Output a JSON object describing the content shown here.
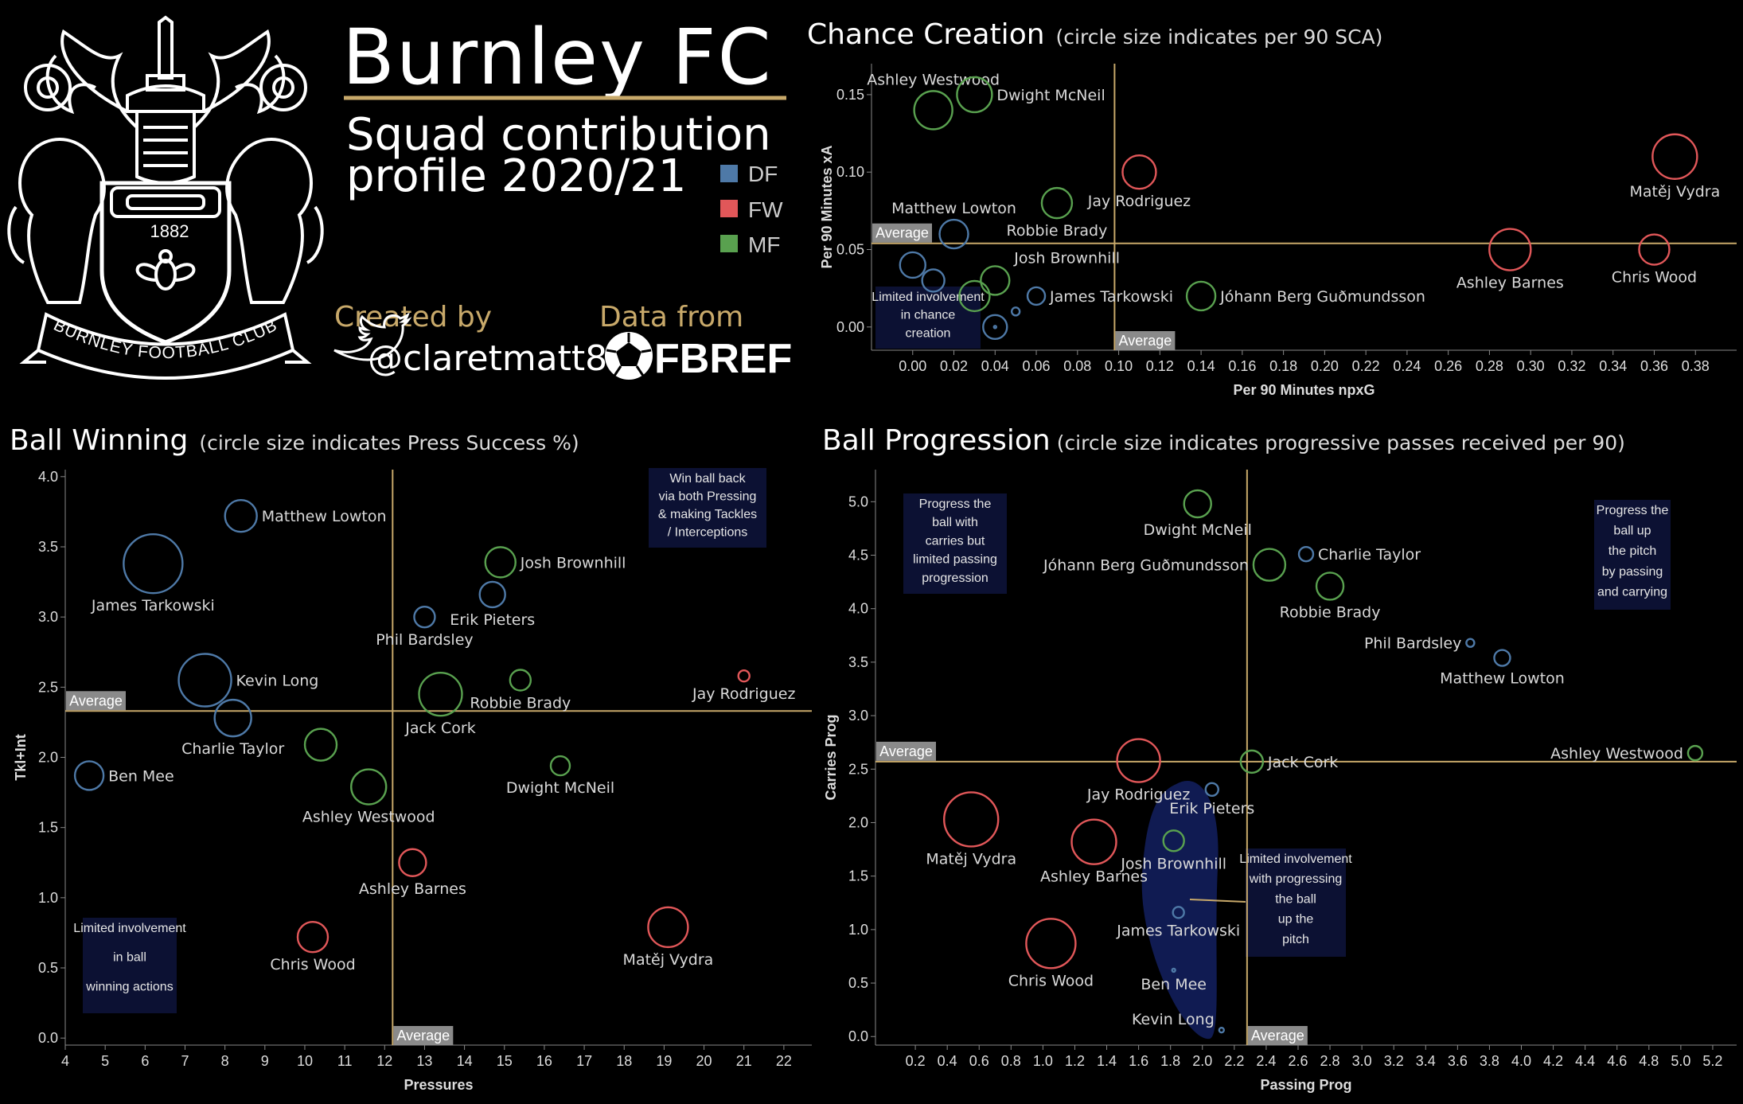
{
  "header": {
    "title": "Burnley FC",
    "subtitle_line1": "Squad contribution",
    "subtitle_line2": "profile 2020/21",
    "created_by_label": "Created by",
    "twitter_handle": "@claretmatt87",
    "data_from_label": "Data from",
    "data_source_logo_text": "FBREF",
    "crest_year": "1882",
    "crest_motto": "BURNLEY FOOTBALL CLUB",
    "gold_color": "#c8a96a"
  },
  "legend": [
    {
      "label": "DF",
      "color": "#4e79a7"
    },
    {
      "label": "FW",
      "color": "#e15759"
    },
    {
      "label": "MF",
      "color": "#59a14f"
    }
  ],
  "chart_data": [
    {
      "type": "scatter",
      "title": "Chance Creation",
      "subtitle": "(circle size indicates per 90 SCA)",
      "xlabel": "Per 90 Minutes npxG",
      "ylabel": "Per 90 Minutes xA",
      "xlim": [
        -0.02,
        0.4
      ],
      "ylim": [
        -0.015,
        0.17
      ],
      "xticks": [
        "0.00",
        "0.02",
        "0.04",
        "0.06",
        "0.08",
        "0.10",
        "0.12",
        "0.14",
        "0.16",
        "0.18",
        "0.20",
        "0.22",
        "0.24",
        "0.26",
        "0.28",
        "0.30",
        "0.32",
        "0.34",
        "0.36",
        "0.38"
      ],
      "yticks": [
        "0.00",
        "0.05",
        "0.10",
        "0.15"
      ],
      "avg_x": 0.098,
      "avg_y": 0.054,
      "avg_label": "Average",
      "grid": false,
      "points": [
        {
          "name": "Ashley Westwood",
          "pos": "MF",
          "x": 0.01,
          "y": 0.14,
          "r": 24,
          "label": "Ashley Westwood"
        },
        {
          "name": "Dwight McNeil",
          "pos": "MF",
          "x": 0.03,
          "y": 0.15,
          "r": 22,
          "label": "Dwight McNeil"
        },
        {
          "name": "Matěj Vydra",
          "pos": "FW",
          "x": 0.37,
          "y": 0.11,
          "r": 28,
          "label": "Matěj Vydra"
        },
        {
          "name": "Jay Rodriguez",
          "pos": "FW",
          "x": 0.11,
          "y": 0.1,
          "r": 21,
          "label": "Jay Rodriguez"
        },
        {
          "name": "Robbie Brady",
          "pos": "MF",
          "x": 0.07,
          "y": 0.08,
          "r": 19,
          "label": "Robbie Brady"
        },
        {
          "name": "Matthew Lowton",
          "pos": "DF",
          "x": 0.02,
          "y": 0.06,
          "r": 18,
          "label": "Matthew Lowton"
        },
        {
          "name": "Ashley Barnes",
          "pos": "FW",
          "x": 0.29,
          "y": 0.05,
          "r": 26,
          "label": "Ashley Barnes"
        },
        {
          "name": "Chris Wood",
          "pos": "FW",
          "x": 0.36,
          "y": 0.05,
          "r": 19,
          "label": "Chris Wood"
        },
        {
          "name": "Josh Brownhill",
          "pos": "MF",
          "x": 0.04,
          "y": 0.03,
          "r": 18,
          "label": "Josh Brownhill"
        },
        {
          "name": "James Tarkowski",
          "pos": "DF",
          "x": 0.06,
          "y": 0.02,
          "r": 11,
          "label": "James Tarkowski"
        },
        {
          "name": "Jóhann Berg Guðmundsson",
          "pos": "MF",
          "x": 0.14,
          "y": 0.02,
          "r": 18,
          "label": "Jóhann Berg Guðmundsson"
        },
        {
          "name": "DF 1",
          "pos": "DF",
          "x": 0.0,
          "y": 0.04,
          "r": 16,
          "label": ""
        },
        {
          "name": "DF 2",
          "pos": "DF",
          "x": 0.01,
          "y": 0.03,
          "r": 14,
          "label": ""
        },
        {
          "name": "MF 1",
          "pos": "MF",
          "x": 0.03,
          "y": 0.02,
          "r": 19,
          "label": ""
        },
        {
          "name": "DF 3",
          "pos": "DF",
          "x": 0.04,
          "y": 0.0,
          "r": 15,
          "label": ""
        },
        {
          "name": "DF 4",
          "pos": "DF",
          "x": 0.05,
          "y": 0.01,
          "r": 5,
          "label": ""
        },
        {
          "name": "DF 5",
          "pos": "DF",
          "x": 0.04,
          "y": 0.0,
          "r": 1.5,
          "label": ""
        }
      ],
      "annotations": [
        "Limited involvement in chance creation"
      ]
    },
    {
      "type": "scatter",
      "title": "Ball Winning",
      "subtitle": "(circle size indicates Press Success %)",
      "xlabel": "Pressures",
      "ylabel": "Tkl+Int",
      "xlim": [
        4,
        22.7
      ],
      "ylim": [
        -0.05,
        4.05
      ],
      "xticks": [
        "4",
        "5",
        "6",
        "7",
        "8",
        "9",
        "10",
        "11",
        "12",
        "13",
        "14",
        "15",
        "16",
        "17",
        "18",
        "19",
        "20",
        "21",
        "22"
      ],
      "yticks": [
        "0.0",
        "0.5",
        "1.0",
        "1.5",
        "2.0",
        "2.5",
        "3.0",
        "3.5",
        "4.0"
      ],
      "avg_x": 12.2,
      "avg_y": 2.33,
      "avg_label": "Average",
      "grid": false,
      "points": [
        {
          "name": "Matthew Lowton",
          "pos": "DF",
          "x": 8.4,
          "y": 3.72,
          "r": 20,
          "label": "Matthew Lowton"
        },
        {
          "name": "James Tarkowski",
          "pos": "DF",
          "x": 6.2,
          "y": 3.38,
          "r": 37,
          "label": "James Tarkowski"
        },
        {
          "name": "Josh Brownhill",
          "pos": "MF",
          "x": 14.9,
          "y": 3.39,
          "r": 19,
          "label": "Josh Brownhill"
        },
        {
          "name": "Erik Pieters",
          "pos": "DF",
          "x": 14.7,
          "y": 3.16,
          "r": 16,
          "label": "Erik Pieters"
        },
        {
          "name": "Phil Bardsley",
          "pos": "DF",
          "x": 13.0,
          "y": 3.0,
          "r": 13,
          "label": "Phil Bardsley"
        },
        {
          "name": "Kevin Long",
          "pos": "DF",
          "x": 7.5,
          "y": 2.55,
          "r": 33,
          "label": "Kevin Long"
        },
        {
          "name": "Robbie Brady",
          "pos": "MF",
          "x": 15.4,
          "y": 2.55,
          "r": 13,
          "label": "Robbie Brady"
        },
        {
          "name": "Jay Rodriguez",
          "pos": "FW",
          "x": 21.0,
          "y": 2.58,
          "r": 7,
          "label": "Jay Rodriguez"
        },
        {
          "name": "Jack Cork",
          "pos": "MF",
          "x": 13.4,
          "y": 2.45,
          "r": 27,
          "label": "Jack Cork"
        },
        {
          "name": "Charlie Taylor",
          "pos": "DF",
          "x": 8.2,
          "y": 2.28,
          "r": 23,
          "label": "Charlie Taylor"
        },
        {
          "name": "MF 2",
          "pos": "MF",
          "x": 10.4,
          "y": 2.09,
          "r": 20,
          "label": ""
        },
        {
          "name": "Ben Mee",
          "pos": "DF",
          "x": 4.6,
          "y": 1.87,
          "r": 18,
          "label": "Ben Mee"
        },
        {
          "name": "Dwight McNeil",
          "pos": "MF",
          "x": 16.4,
          "y": 1.94,
          "r": 12,
          "label": "Dwight McNeil"
        },
        {
          "name": "Ashley Westwood",
          "pos": "MF",
          "x": 11.6,
          "y": 1.79,
          "r": 22,
          "label": "Ashley Westwood"
        },
        {
          "name": "Ashley Barnes",
          "pos": "FW",
          "x": 12.7,
          "y": 1.25,
          "r": 17,
          "label": "Ashley Barnes"
        },
        {
          "name": "Chris Wood",
          "pos": "FW",
          "x": 10.2,
          "y": 0.72,
          "r": 19,
          "label": "Chris Wood"
        },
        {
          "name": "Matěj Vydra",
          "pos": "FW",
          "x": 19.1,
          "y": 0.79,
          "r": 25,
          "label": "Matěj Vydra"
        }
      ],
      "annotations": [
        "Win ball back via both Pressing & making Tackles / Interceptions",
        "Limited involvement in ball winning actions"
      ]
    },
    {
      "type": "scatter",
      "title": "Ball Progression",
      "subtitle": "(circle size indicates progressive passes received per 90)",
      "xlabel": "Passing Prog",
      "ylabel": "Carries Prog",
      "xlim": [
        -0.05,
        5.35
      ],
      "ylim": [
        -0.08,
        5.3
      ],
      "xticks": [
        "0.2",
        "0.4",
        "0.6",
        "0.8",
        "1.0",
        "1.2",
        "1.4",
        "1.6",
        "1.8",
        "2.0",
        "2.2",
        "2.4",
        "2.6",
        "2.8",
        "3.0",
        "3.2",
        "3.4",
        "3.6",
        "3.8",
        "4.0",
        "4.2",
        "4.4",
        "4.6",
        "4.8",
        "5.0",
        "5.2"
      ],
      "yticks": [
        "0.0",
        "0.5",
        "1.0",
        "1.5",
        "2.0",
        "2.5",
        "3.0",
        "3.5",
        "4.0",
        "4.5",
        "5.0"
      ],
      "avg_x": 2.28,
      "avg_y": 2.57,
      "avg_label": "Average",
      "grid": false,
      "points": [
        {
          "name": "Dwight McNeil",
          "pos": "MF",
          "x": 1.97,
          "y": 4.98,
          "r": 17,
          "label": "Dwight McNeil"
        },
        {
          "name": "Charlie Taylor",
          "pos": "DF",
          "x": 2.65,
          "y": 4.51,
          "r": 9,
          "label": "Charlie Taylor"
        },
        {
          "name": "Jóhann Berg Guðmundsson",
          "pos": "MF",
          "x": 2.42,
          "y": 4.41,
          "r": 20,
          "label": "Jóhann Berg Guðmundsson"
        },
        {
          "name": "Robbie Brady",
          "pos": "MF",
          "x": 2.8,
          "y": 4.21,
          "r": 17,
          "label": "Robbie Brady"
        },
        {
          "name": "Phil Bardsley",
          "pos": "DF",
          "x": 3.68,
          "y": 3.68,
          "r": 5,
          "label": "Phil Bardsley"
        },
        {
          "name": "Matthew Lowton",
          "pos": "DF",
          "x": 3.88,
          "y": 3.54,
          "r": 10,
          "label": "Matthew Lowton"
        },
        {
          "name": "Ashley Westwood",
          "pos": "MF",
          "x": 5.09,
          "y": 2.65,
          "r": 9,
          "label": "Ashley Westwood"
        },
        {
          "name": "Jay Rodriguez",
          "pos": "FW",
          "x": 1.6,
          "y": 2.58,
          "r": 27,
          "label": "Jay Rodriguez"
        },
        {
          "name": "Jack Cork",
          "pos": "MF",
          "x": 2.31,
          "y": 2.57,
          "r": 14,
          "label": "Jack Cork"
        },
        {
          "name": "Erik Pieters",
          "pos": "DF",
          "x": 2.06,
          "y": 2.31,
          "r": 8,
          "label": "Erik Pieters"
        },
        {
          "name": "Matěj Vydra",
          "pos": "FW",
          "x": 0.55,
          "y": 2.03,
          "r": 34,
          "label": "Matěj Vydra"
        },
        {
          "name": "Ashley Barnes",
          "pos": "FW",
          "x": 1.32,
          "y": 1.82,
          "r": 28,
          "label": "Ashley Barnes"
        },
        {
          "name": "Josh Brownhill",
          "pos": "MF",
          "x": 1.82,
          "y": 1.83,
          "r": 13,
          "label": "Josh Brownhill"
        },
        {
          "name": "James Tarkowski",
          "pos": "DF",
          "x": 1.85,
          "y": 1.16,
          "r": 7,
          "label": "James Tarkowski"
        },
        {
          "name": "Chris Wood",
          "pos": "FW",
          "x": 1.05,
          "y": 0.87,
          "r": 31,
          "label": "Chris Wood"
        },
        {
          "name": "Ben Mee",
          "pos": "DF",
          "x": 1.82,
          "y": 0.62,
          "r": 2,
          "label": "Ben Mee"
        },
        {
          "name": "Kevin Long",
          "pos": "DF",
          "x": 2.12,
          "y": 0.06,
          "r": 3,
          "label": "Kevin Long"
        }
      ],
      "annotations": [
        "Progress the ball with carries but limited passing progression",
        "Progress the ball up the pitch by passing and carrying",
        "Limited involvement with progressing the ball up the pitch"
      ]
    }
  ]
}
